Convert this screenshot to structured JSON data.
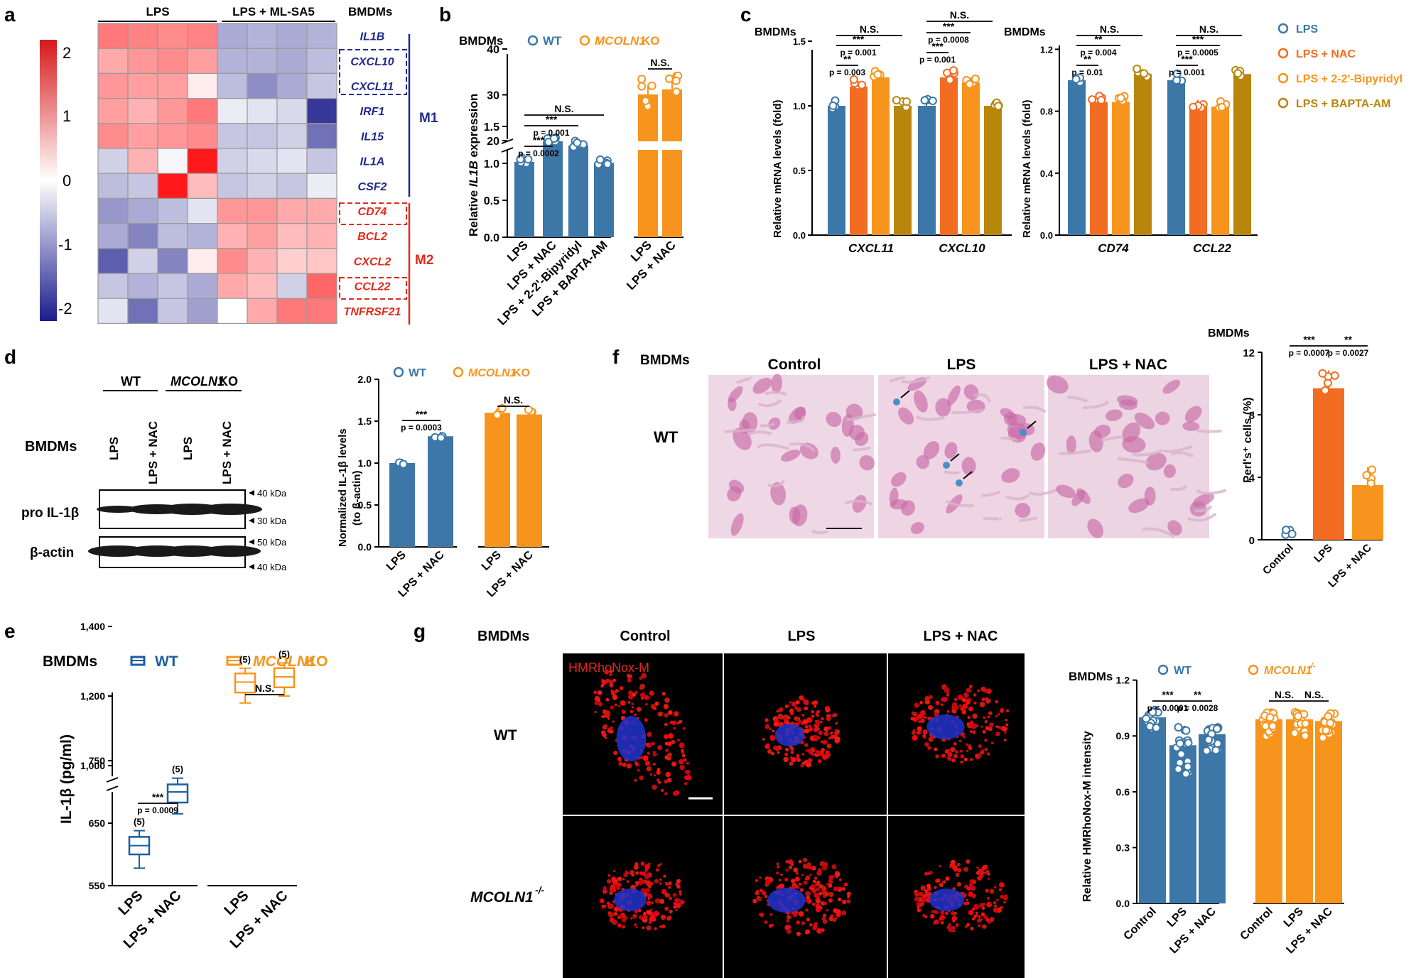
{
  "colors": {
    "blue": "#3c77a8",
    "orange": "#f7941d",
    "orange2": "#f26c21",
    "gold": "#b8860b",
    "m1": "#1f2a8a",
    "m2": "#e02a1c",
    "heat_hi": "#d7191c",
    "heat_lo": "#1b1c8c"
  },
  "panels": {
    "a": "a",
    "b": "b",
    "c": "c",
    "d": "d",
    "e": "e",
    "f": "f",
    "g": "g"
  },
  "common": {
    "bmdms": "BMDMs",
    "wt": "WT",
    "ko_gene": "MCOLN1",
    "ko": " KO",
    "ns": "N.S.",
    "lps": "LPS",
    "lps_nac": "LPS + NAC",
    "control": "Control",
    "mcoln1_minus": "MCOLN1",
    "sup_minus": "-/-"
  },
  "a": {
    "group1": "LPS",
    "group2": "LPS + ML-SA5",
    "scale": [
      "2",
      "1",
      "0",
      "-1",
      "-2"
    ],
    "genes": [
      "IL1B",
      "CXCL10",
      "CXCL11",
      "IRF1",
      "IL15",
      "IL1A",
      "CSF2",
      "CD74",
      "BCL2",
      "CXCL2",
      "CCL22",
      "TNFRSF21"
    ],
    "m1": "M1",
    "m2": "M2",
    "values": [
      [
        1.4,
        1.3,
        1.2,
        1.3,
        -0.9,
        -0.8,
        -0.9,
        -0.8
      ],
      [
        0.9,
        1.1,
        1.2,
        1.0,
        -0.8,
        -0.8,
        -0.9,
        -0.7
      ],
      [
        1.1,
        1.0,
        1.0,
        0.2,
        -0.7,
        -1.2,
        -0.9,
        -0.6
      ],
      [
        1.0,
        0.8,
        1.1,
        1.4,
        -0.2,
        -0.3,
        -0.4,
        -2.1
      ],
      [
        1.2,
        1.0,
        1.1,
        1.2,
        -0.6,
        -0.6,
        -0.5,
        -1.5
      ],
      [
        -0.5,
        0.8,
        -0.1,
        2.4,
        -0.5,
        -0.4,
        -0.3,
        -0.6
      ],
      [
        -0.7,
        -0.6,
        2.4,
        0.7,
        -0.6,
        -0.5,
        -0.6,
        -0.2
      ],
      [
        -1.1,
        -0.9,
        -0.7,
        -0.3,
        1.1,
        1.1,
        0.9,
        0.9
      ],
      [
        -0.9,
        -1.3,
        -0.7,
        -0.8,
        0.8,
        1.0,
        0.7,
        0.8
      ],
      [
        -1.7,
        -0.5,
        -1.3,
        0.2,
        1.2,
        0.8,
        0.5,
        0.6
      ],
      [
        -0.6,
        -0.8,
        -0.6,
        -0.9,
        0.9,
        0.7,
        -0.5,
        1.6
      ],
      [
        -0.3,
        -1.5,
        -0.6,
        -1.0,
        0.0,
        0.9,
        1.4,
        1.4
      ]
    ]
  },
  "b": {
    "ylabel_pre": "Relative ",
    "ylabel_gene": "IL1B",
    "ylabel_post": " expression",
    "yticks": [
      "0.0",
      "0.5",
      "1.0",
      "1.5",
      "20",
      "30",
      "40"
    ],
    "categories": [
      "LPS",
      "LPS + NAC",
      "LPS + 2-2'-Bipyridyl",
      "LPS + BAPTA-AM",
      "LPS",
      "LPS + NAC"
    ],
    "values": [
      1.02,
      1.3,
      1.24,
      1.01,
      30.1,
      31.2
    ],
    "stats": [
      "***",
      "p = 0.001",
      "***",
      "p = 0.0002",
      "N.S.",
      "N.S."
    ]
  },
  "c": {
    "ylabel": "Relative mRNA levels (fold)",
    "yticks1": [
      "0.0",
      "0.5",
      "1.0",
      "1.5"
    ],
    "yticks2": [
      "0.0",
      "0.4",
      "0.8",
      "1.2"
    ],
    "genes": [
      "CXCL11",
      "CXCL10",
      "CD74",
      "CCL22"
    ],
    "legend": [
      "LPS",
      "LPS + NAC",
      "LPS + 2-2'-Bipyridyl",
      "LPS + BAPTA-AM"
    ],
    "values": {
      "CXCL11": [
        1.0,
        1.15,
        1.22,
        1.0
      ],
      "CXCL10": [
        1.0,
        1.22,
        1.18,
        1.0
      ],
      "CD74": [
        1.0,
        0.86,
        0.86,
        1.04
      ],
      "CCL22": [
        1.0,
        0.84,
        0.83,
        1.04
      ]
    },
    "stats_left1": [
      "N.S.",
      "***",
      "p = 0.001",
      "**",
      "p = 0.003"
    ],
    "stats_left2": [
      "N.S.",
      "***",
      "p = 0.0008",
      "***",
      "p = 0.001"
    ],
    "stats_right1": [
      "N.S.",
      "**",
      "p = 0.004",
      "**",
      "p = 0.01"
    ],
    "stats_right2": [
      "N.S.",
      "***",
      "p = 0.0005",
      "***",
      "p = 0.001"
    ]
  },
  "d": {
    "blot_labels": [
      "pro IL-1β",
      "β-actin"
    ],
    "mw": [
      "40 kDa",
      "30 kDa",
      "50 kDa",
      "40 kDa"
    ],
    "ylabel1": "Normalized IL-1β levels",
    "ylabel2": "(to β-actin)",
    "yticks": [
      "0.0",
      "0.5",
      "1.0",
      "1.5",
      "2.0"
    ],
    "values": [
      1.0,
      1.32,
      1.6,
      1.58
    ],
    "stats": [
      "***",
      "p = 0.0003",
      "N.S."
    ]
  },
  "e": {
    "ylabel": "IL-1β (pg/ml)",
    "yticks": [
      "550",
      "650",
      "750",
      "1,000",
      "1,200",
      "1,400"
    ],
    "n": [
      "(5)",
      "(5)",
      "(5)",
      "(5)"
    ],
    "stats": [
      "***",
      "p = 0.0009",
      "N.S."
    ],
    "boxes": [
      {
        "median": 614,
        "q1": 600,
        "q3": 628,
        "min": 578,
        "max": 638
      },
      {
        "median": 700,
        "q1": 683,
        "q3": 712,
        "min": 665,
        "max": 722
      },
      {
        "median": 1240,
        "q1": 1210,
        "q3": 1265,
        "min": 1180,
        "max": 1280
      },
      {
        "median": 1255,
        "q1": 1225,
        "q3": 1280,
        "min": 1200,
        "max": 1295
      }
    ]
  },
  "f": {
    "titles": [
      "Control",
      "LPS",
      "LPS + NAC"
    ],
    "ylabel": "Perl's⁺ cells (%)",
    "yticks": [
      "0",
      "4",
      "8",
      "12"
    ],
    "values": [
      0.3,
      9.7,
      3.5
    ],
    "stats": [
      "***",
      "**",
      "p = 0.0007",
      "p = 0.0027"
    ]
  },
  "g": {
    "titles": [
      "Control",
      "LPS",
      "LPS + NAC"
    ],
    "probe": "HMRhoNox-M",
    "rows": [
      "WT"
    ],
    "ylabel": "Relative HMRhoNox-M intensity",
    "yticks": [
      "0.0",
      "0.3",
      "0.6",
      "0.9",
      "1.2"
    ],
    "values": [
      1.0,
      0.85,
      0.91,
      0.99,
      0.99,
      0.98
    ],
    "stats": [
      "***",
      "**",
      "p < 0.0001",
      "p = 0.0028",
      "N.S.",
      "N.S."
    ]
  },
  "chart_data": [
    {
      "type": "heatmap",
      "title": "",
      "rows": [
        "IL1B",
        "CXCL10",
        "CXCL11",
        "IRF1",
        "IL15",
        "IL1A",
        "CSF2",
        "CD74",
        "BCL2",
        "CXCL2",
        "CCL22",
        "TNFRSF21"
      ],
      "columns": [
        "LPS",
        "LPS",
        "LPS",
        "LPS",
        "LPS + ML-SA5",
        "LPS + ML-SA5",
        "LPS + ML-SA5",
        "LPS + ML-SA5"
      ],
      "zlim": [
        -2,
        2
      ]
    },
    {
      "type": "bar",
      "title": "",
      "categories": [
        "LPS",
        "LPS + NAC",
        "LPS + 2-2'-Bipyridyl",
        "LPS + BAPTA-AM",
        "LPS",
        "LPS + NAC"
      ],
      "values": [
        1.02,
        1.3,
        1.24,
        1.01,
        30.1,
        31.2
      ],
      "ylabel": "Relative IL1B expression"
    },
    {
      "type": "bar",
      "title": "",
      "categories": [
        "CXCL11",
        "CXCL10",
        "CD74",
        "CCL22"
      ],
      "series": [
        {
          "name": "LPS",
          "values": [
            1.0,
            1.0,
            1.0,
            1.0
          ]
        },
        {
          "name": "LPS + NAC",
          "values": [
            1.15,
            1.22,
            0.86,
            0.84
          ]
        },
        {
          "name": "LPS + 2-2'-Bipyridyl",
          "values": [
            1.22,
            1.18,
            0.86,
            0.83
          ]
        },
        {
          "name": "LPS + BAPTA-AM",
          "values": [
            1.0,
            1.0,
            1.04,
            1.04
          ]
        }
      ],
      "ylabel": "Relative mRNA levels (fold)"
    },
    {
      "type": "bar",
      "title": "",
      "categories": [
        "LPS",
        "LPS + NAC",
        "LPS",
        "LPS + NAC"
      ],
      "values": [
        1.0,
        1.32,
        1.6,
        1.58
      ],
      "ylabel": "Normalized IL-1β levels (to β-actin)",
      "ylim": [
        0,
        2
      ]
    },
    {
      "type": "bar",
      "title": "",
      "categories": [
        "Control",
        "LPS",
        "LPS + NAC"
      ],
      "values": [
        0.3,
        9.7,
        3.5
      ],
      "ylabel": "Perl's⁺ cells (%)",
      "ylim": [
        0,
        12
      ]
    },
    {
      "type": "bar",
      "title": "",
      "categories": [
        "Control",
        "LPS",
        "LPS + NAC",
        "Control",
        "LPS",
        "LPS + NAC"
      ],
      "values": [
        1.0,
        0.85,
        0.91,
        0.99,
        0.99,
        0.98
      ],
      "ylabel": "Relative HMRhoNox-M intensity",
      "ylim": [
        0,
        1.2
      ]
    }
  ]
}
